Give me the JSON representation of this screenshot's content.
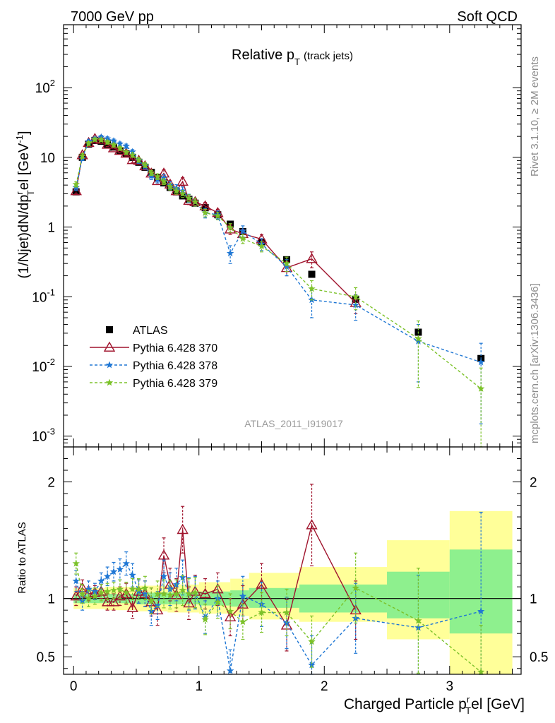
{
  "header": {
    "left": "7000 GeV pp",
    "right": "Soft QCD"
  },
  "side_labels": {
    "top": "Rivet 3.1.10, ≥ 2M events",
    "bottom": "mcplots.cern.ch [arXiv:1306.3436]"
  },
  "chart_data": [
    {
      "type": "scatter",
      "title": "Relative p",
      "title_sub": "T",
      "title_note": "(track jets)",
      "ylabel_main": "(1/Njet)dN/dp",
      "ylabel_sub": "T",
      "ylabel_sup": "r",
      "ylabel_rest": "el [GeV",
      "ylabel_unit_sup": "-1",
      "ylabel_close": "]",
      "analysis_tag": "ATLAS_2011_I919017",
      "y_scale": "log",
      "xlim": [
        -0.08,
        3.57
      ],
      "ylim": [
        0.0007,
        800
      ],
      "y_ticks": [
        {
          "value": 0.001,
          "base": "10",
          "exp": "-3"
        },
        {
          "value": 0.01,
          "base": "10",
          "exp": "-2"
        },
        {
          "value": 0.1,
          "base": "10",
          "exp": "-1"
        },
        {
          "value": 1,
          "base": "1",
          "exp": ""
        },
        {
          "value": 10,
          "base": "10",
          "exp": ""
        },
        {
          "value": 100,
          "base": "10",
          "exp": "2"
        }
      ],
      "legend_position": "lower-left",
      "series": [
        {
          "name": "ATLAS",
          "kind": "data",
          "color": "#000000",
          "marker": "square",
          "x": [
            0.02,
            0.07,
            0.12,
            0.17,
            0.22,
            0.27,
            0.32,
            0.37,
            0.42,
            0.47,
            0.52,
            0.57,
            0.62,
            0.67,
            0.72,
            0.77,
            0.82,
            0.87,
            0.92,
            0.97,
            1.05,
            1.15,
            1.25,
            1.35,
            1.5,
            1.7,
            1.9,
            2.25,
            2.75,
            3.25
          ],
          "y": [
            3.2,
            10.0,
            15.5,
            17.5,
            17.0,
            15.5,
            14.0,
            12.5,
            11.2,
            10.0,
            8.5,
            7.2,
            6.1,
            5.1,
            4.3,
            3.7,
            3.2,
            2.8,
            2.5,
            2.2,
            1.9,
            1.5,
            1.1,
            0.86,
            0.6,
            0.34,
            0.21,
            0.092,
            0.031,
            0.013
          ]
        },
        {
          "name": "Pythia 6.428 370",
          "kind": "mc",
          "color": "#a0142d",
          "marker": "triangle",
          "dash": "",
          "x": [
            0.02,
            0.07,
            0.12,
            0.17,
            0.22,
            0.27,
            0.32,
            0.37,
            0.42,
            0.47,
            0.52,
            0.57,
            0.62,
            0.67,
            0.72,
            0.77,
            0.82,
            0.87,
            0.92,
            0.97,
            1.05,
            1.15,
            1.25,
            1.35,
            1.5,
            1.7,
            1.9,
            2.25
          ],
          "y": [
            3.3,
            10.8,
            16.2,
            18.5,
            18.0,
            15.3,
            13.6,
            12.5,
            11.4,
            9.2,
            9.0,
            7.5,
            5.9,
            4.6,
            5.9,
            4.1,
            3.3,
            4.5,
            2.4,
            2.3,
            2.0,
            1.6,
            0.93,
            0.8,
            0.67,
            0.26,
            0.35,
            0.082
          ],
          "yerr": [
            0.3,
            0.8,
            1.0,
            1.0,
            1.0,
            1.0,
            0.9,
            0.9,
            0.9,
            0.8,
            0.8,
            0.7,
            0.6,
            0.5,
            0.7,
            0.5,
            0.4,
            0.6,
            0.3,
            0.3,
            0.25,
            0.2,
            0.15,
            0.13,
            0.11,
            0.06,
            0.09,
            0.025
          ]
        },
        {
          "name": "Pythia 6.428 378",
          "kind": "mc",
          "color": "#1f77d4",
          "marker": "star",
          "dash": "4,3",
          "x": [
            0.02,
            0.07,
            0.12,
            0.17,
            0.22,
            0.27,
            0.32,
            0.37,
            0.42,
            0.47,
            0.52,
            0.57,
            0.62,
            0.67,
            0.72,
            0.77,
            0.82,
            0.87,
            0.92,
            0.97,
            1.05,
            1.15,
            1.25,
            1.35,
            1.5,
            1.7,
            1.9,
            2.25,
            2.75,
            3.25
          ],
          "y": [
            3.7,
            9.8,
            16.8,
            18.5,
            19.5,
            18.5,
            17.2,
            15.6,
            14.5,
            12.0,
            9.0,
            7.5,
            5.4,
            4.8,
            5.1,
            4.0,
            3.6,
            3.3,
            2.6,
            2.3,
            1.6,
            1.5,
            0.42,
            0.88,
            0.57,
            0.27,
            0.09,
            0.076,
            0.023,
            0.0115
          ],
          "yerr": [
            0.35,
            0.8,
            1.1,
            1.1,
            1.2,
            1.2,
            1.1,
            1.0,
            1.0,
            0.9,
            0.8,
            0.7,
            0.6,
            0.5,
            0.6,
            0.5,
            0.45,
            0.45,
            0.35,
            0.3,
            0.25,
            0.2,
            0.12,
            0.16,
            0.11,
            0.07,
            0.04,
            0.03,
            0.017,
            0.01
          ]
        },
        {
          "name": "Pythia 6.428 379",
          "kind": "mc",
          "color": "#7cc22a",
          "marker": "star",
          "dash": "4,3",
          "x": [
            0.02,
            0.07,
            0.12,
            0.17,
            0.22,
            0.27,
            0.32,
            0.37,
            0.42,
            0.47,
            0.52,
            0.57,
            0.62,
            0.67,
            0.72,
            0.77,
            0.82,
            0.87,
            0.92,
            0.97,
            1.05,
            1.15,
            1.25,
            1.35,
            1.5,
            1.7,
            1.9,
            2.25,
            2.75,
            3.25
          ],
          "y": [
            4.1,
            10.5,
            15.8,
            18.0,
            17.8,
            16.5,
            15.0,
            13.5,
            11.8,
            10.8,
            9.2,
            7.8,
            6.0,
            5.3,
            4.5,
            3.8,
            3.3,
            3.0,
            2.6,
            2.3,
            1.6,
            1.45,
            0.98,
            0.68,
            0.53,
            0.3,
            0.13,
            0.1,
            0.025,
            0.0048
          ],
          "yerr": [
            0.35,
            0.8,
            1.0,
            1.0,
            1.0,
            1.0,
            1.0,
            0.9,
            0.8,
            0.8,
            0.7,
            0.6,
            0.5,
            0.5,
            0.45,
            0.4,
            0.35,
            0.35,
            0.3,
            0.3,
            0.2,
            0.18,
            0.14,
            0.1,
            0.09,
            0.07,
            0.04,
            0.035,
            0.02,
            0.0047
          ]
        }
      ]
    },
    {
      "type": "scatter",
      "ylabel": "Ratio to ATLAS",
      "xlabel_main": "Charged Particle p",
      "xlabel_sub": "T",
      "xlabel_sup": "r",
      "xlabel_rest": "el [GeV]",
      "xlim": [
        -0.08,
        3.57
      ],
      "ylim": [
        0.35,
        2.3
      ],
      "x_ticks": [
        "0",
        "1",
        "2",
        "3"
      ],
      "x_tick_values": [
        0,
        1,
        2,
        3
      ],
      "y_ticks": [
        "0.5",
        "1",
        "2"
      ],
      "y_tick_values": [
        0.5,
        1,
        2
      ],
      "reference_line": 1.0,
      "uncertainty_bands": {
        "bins": [
          [
            0.0,
            0.25
          ],
          [
            0.25,
            0.5
          ],
          [
            0.5,
            0.75
          ],
          [
            0.75,
            1.0
          ],
          [
            1.0,
            1.25
          ],
          [
            1.25,
            1.4
          ],
          [
            1.4,
            1.8
          ],
          [
            1.8,
            2.5
          ],
          [
            2.5,
            3.0
          ],
          [
            3.0,
            3.5
          ]
        ],
        "inner": [
          [
            0.96,
            1.04
          ],
          [
            0.96,
            1.04
          ],
          [
            0.95,
            1.05
          ],
          [
            0.95,
            1.05
          ],
          [
            0.94,
            1.06
          ],
          [
            0.93,
            1.07
          ],
          [
            0.92,
            1.09
          ],
          [
            0.88,
            1.12
          ],
          [
            0.83,
            1.23
          ],
          [
            0.7,
            1.42
          ]
        ],
        "outer": [
          [
            0.91,
            1.09
          ],
          [
            0.9,
            1.1
          ],
          [
            0.89,
            1.11
          ],
          [
            0.88,
            1.12
          ],
          [
            0.87,
            1.14
          ],
          [
            0.85,
            1.17
          ],
          [
            0.82,
            1.22
          ],
          [
            0.8,
            1.27
          ],
          [
            0.65,
            1.5
          ],
          [
            0.35,
            1.75
          ]
        ],
        "inner_color": "#8ef08e",
        "outer_color": "#ffff99"
      },
      "series": [
        {
          "name": "Pythia 6.428 370",
          "color": "#a0142d",
          "marker": "triangle",
          "dash": "",
          "x": [
            0.02,
            0.07,
            0.12,
            0.17,
            0.22,
            0.27,
            0.32,
            0.37,
            0.42,
            0.47,
            0.52,
            0.57,
            0.62,
            0.67,
            0.72,
            0.77,
            0.82,
            0.87,
            0.92,
            0.97,
            1.05,
            1.15,
            1.25,
            1.35,
            1.5,
            1.7,
            1.9,
            2.25
          ],
          "y": [
            1.02,
            1.09,
            1.04,
            1.05,
            1.06,
            0.97,
            0.97,
            1.02,
            1.04,
            0.92,
            1.06,
            1.04,
            0.97,
            0.9,
            1.37,
            1.12,
            1.03,
            1.59,
            0.96,
            1.06,
            1.04,
            1.08,
            0.84,
            0.95,
            1.12,
            0.77,
            1.63,
            0.9
          ],
          "yerr": [
            0.08,
            0.07,
            0.06,
            0.06,
            0.06,
            0.07,
            0.07,
            0.08,
            0.09,
            0.09,
            0.1,
            0.11,
            0.12,
            0.13,
            0.15,
            0.14,
            0.14,
            0.2,
            0.14,
            0.14,
            0.13,
            0.14,
            0.16,
            0.16,
            0.18,
            0.22,
            0.35,
            0.25
          ]
        },
        {
          "name": "Pythia 6.428 378",
          "color": "#1f77d4",
          "marker": "star",
          "dash": "4,3",
          "x": [
            0.02,
            0.07,
            0.12,
            0.17,
            0.22,
            0.27,
            0.32,
            0.37,
            0.42,
            0.47,
            0.52,
            0.57,
            0.62,
            0.67,
            0.72,
            0.77,
            0.82,
            0.87,
            0.92,
            0.97,
            1.05,
            1.15,
            1.25,
            1.35,
            1.5,
            1.7,
            1.9,
            2.25,
            2.75,
            3.25
          ],
          "y": [
            1.15,
            0.98,
            1.08,
            1.06,
            1.15,
            1.19,
            1.23,
            1.25,
            1.3,
            1.2,
            1.06,
            1.04,
            0.89,
            0.94,
            1.19,
            1.08,
            1.12,
            1.18,
            1.04,
            1.05,
            0.84,
            1.0,
            0.38,
            1.02,
            0.95,
            0.79,
            0.43,
            0.83,
            0.75,
            0.89
          ],
          "yerr": [
            0.09,
            0.08,
            0.07,
            0.07,
            0.07,
            0.08,
            0.08,
            0.09,
            0.1,
            0.1,
            0.1,
            0.11,
            0.12,
            0.12,
            0.14,
            0.14,
            0.14,
            0.15,
            0.14,
            0.14,
            0.14,
            0.15,
            0.18,
            0.17,
            0.19,
            0.22,
            0.25,
            0.3,
            0.45,
            0.85
          ]
        },
        {
          "name": "Pythia 6.428 379",
          "color": "#7cc22a",
          "marker": "star",
          "dash": "4,3",
          "x": [
            0.02,
            0.07,
            0.12,
            0.17,
            0.22,
            0.27,
            0.32,
            0.37,
            0.42,
            0.47,
            0.52,
            0.57,
            0.62,
            0.67,
            0.72,
            0.77,
            0.82,
            0.87,
            0.92,
            0.97,
            1.05,
            1.15,
            1.25,
            1.35,
            1.5,
            1.7,
            1.9,
            2.25,
            2.75,
            3.25
          ],
          "y": [
            1.3,
            1.04,
            1.0,
            1.02,
            1.05,
            1.06,
            1.07,
            1.08,
            1.05,
            1.08,
            1.08,
            1.09,
            0.98,
            1.04,
            1.04,
            1.03,
            1.04,
            1.07,
            1.04,
            1.05,
            0.82,
            0.97,
            0.89,
            0.8,
            0.88,
            0.88,
            0.63,
            1.09,
            0.81,
            0.37
          ],
          "yerr": [
            0.09,
            0.08,
            0.07,
            0.07,
            0.07,
            0.07,
            0.07,
            0.08,
            0.09,
            0.09,
            0.09,
            0.1,
            0.11,
            0.11,
            0.12,
            0.12,
            0.12,
            0.13,
            0.13,
            0.13,
            0.13,
            0.14,
            0.15,
            0.15,
            0.17,
            0.2,
            0.22,
            0.3,
            0.45,
            0.4
          ]
        }
      ]
    }
  ]
}
